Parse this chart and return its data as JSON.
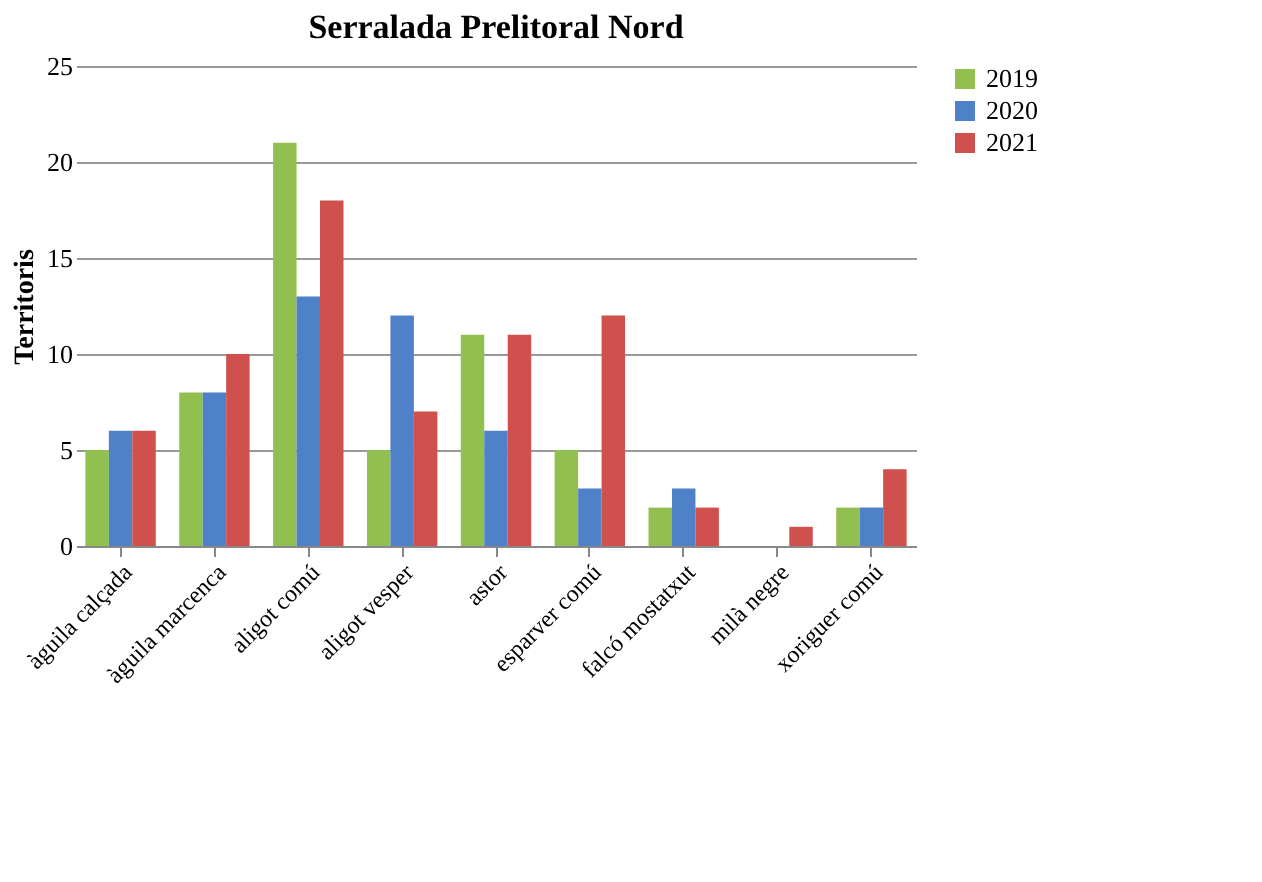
{
  "chart_data": {
    "type": "bar",
    "title": "Serralada Prelitoral Nord",
    "ylabel": "Territoris",
    "categories": [
      "àguila calçada",
      "àguila marcenca",
      "aligot comú",
      "aligot vesper",
      "astor",
      "esparver comú",
      "falcó mostatxut",
      "milà negre",
      "xoriguer comú"
    ],
    "series": [
      {
        "name": "2019",
        "color": "#92c050",
        "values": [
          5,
          8,
          21,
          5,
          11,
          5,
          2,
          0,
          2
        ]
      },
      {
        "name": "2020",
        "color": "#4f81c8",
        "values": [
          6,
          8,
          13,
          12,
          6,
          3,
          3,
          0,
          2
        ]
      },
      {
        "name": "2021",
        "color": "#d0504d",
        "values": [
          6,
          10,
          18,
          7,
          11,
          12,
          2,
          1,
          4
        ]
      }
    ],
    "ylim": [
      0,
      25
    ],
    "yticks": [
      0,
      5,
      10,
      15,
      20,
      25
    ],
    "grid": "y",
    "legend": "right"
  }
}
